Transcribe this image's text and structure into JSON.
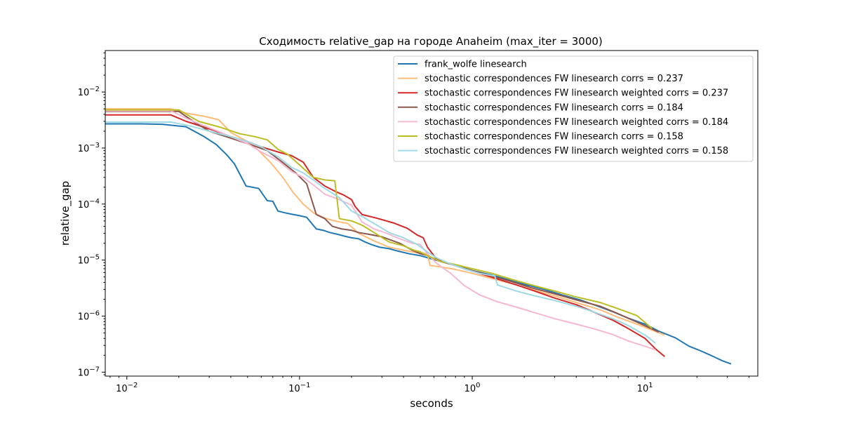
{
  "chart_data": {
    "type": "line",
    "title": "Сходимость relative_gap на городе Anaheim  (max_iter = 3000)",
    "xlabel": "seconds",
    "ylabel": "relative_gap",
    "xscale": "log",
    "yscale": "log",
    "xlim": [
      0.0075,
      45
    ],
    "ylim": [
      8.5e-08,
      0.055
    ],
    "legend_position": "top-right",
    "grid": false,
    "x_ticks": [
      {
        "value": 0.01,
        "base": "10",
        "exp": "−2"
      },
      {
        "value": 0.1,
        "base": "10",
        "exp": "−1"
      },
      {
        "value": 1,
        "base": "10",
        "exp": "0"
      },
      {
        "value": 10,
        "base": "10",
        "exp": "1"
      }
    ],
    "y_ticks": [
      {
        "value": 1e-07,
        "base": "10",
        "exp": "−7"
      },
      {
        "value": 1e-06,
        "base": "10",
        "exp": "−6"
      },
      {
        "value": 1e-05,
        "base": "10",
        "exp": "−5"
      },
      {
        "value": 0.0001,
        "base": "10",
        "exp": "−4"
      },
      {
        "value": 0.001,
        "base": "10",
        "exp": "−3"
      },
      {
        "value": 0.01,
        "base": "10",
        "exp": "−2"
      }
    ],
    "series": [
      {
        "name": "frank_wolfe linesearch",
        "color": "#1f77b4",
        "x": [
          0.0075,
          0.012,
          0.016,
          0.022,
          0.028,
          0.033,
          0.038,
          0.042,
          0.049,
          0.058,
          0.065,
          0.07,
          0.075,
          0.082,
          0.09,
          0.1,
          0.11,
          0.125,
          0.137,
          0.15,
          0.165,
          0.18,
          0.2,
          0.22,
          0.24,
          0.26,
          0.29,
          0.33,
          0.37,
          0.43,
          0.5,
          0.58,
          0.7,
          0.85,
          1.0,
          1.3,
          1.6,
          2.0,
          2.6,
          3.3,
          4.2,
          5.2,
          6.5,
          8.0,
          10.0,
          12.0,
          15.0,
          18.0,
          21.0,
          24.0,
          28.0,
          31.5
        ],
        "y": [
          0.0027,
          0.0027,
          0.00265,
          0.0024,
          0.0016,
          0.00115,
          0.00075,
          0.00052,
          0.00021,
          0.00019,
          0.000115,
          0.000112,
          7.5e-05,
          7e-05,
          6.6e-05,
          6.2e-05,
          5.8e-05,
          3.6e-05,
          3.4e-05,
          3.1e-05,
          2.9e-05,
          2.7e-05,
          2.5e-05,
          2.4e-05,
          2.1e-05,
          1.9e-05,
          1.7e-05,
          1.6e-05,
          1.45e-05,
          1.3e-05,
          1.2e-05,
          1.05e-05,
          9e-06,
          7.6e-06,
          6.5e-06,
          5.4e-06,
          4.5e-06,
          3.7e-06,
          3e-06,
          2.4e-06,
          1.95e-06,
          1.55e-06,
          1.2e-06,
          9.2e-07,
          7.2e-07,
          5.4e-07,
          4.1e-07,
          2.9e-07,
          2.4e-07,
          2e-07,
          1.6e-07,
          1.4e-07
        ]
      },
      {
        "name": "stochastic correspondences FW linesearch corrs = 0.237",
        "color": "#ffbb78",
        "x": [
          0.0075,
          0.018,
          0.022,
          0.028,
          0.034,
          0.04,
          0.05,
          0.058,
          0.068,
          0.08,
          0.092,
          0.105,
          0.12,
          0.14,
          0.16,
          0.19,
          0.22,
          0.27,
          0.33,
          0.4,
          0.48,
          0.55,
          0.57,
          0.65,
          0.8,
          1.0,
          1.3,
          1.7,
          2.2,
          3.0,
          4.0,
          5.5,
          7.0,
          9.0,
          11.0,
          13.0
        ],
        "y": [
          0.005,
          0.005,
          0.0042,
          0.0037,
          0.0032,
          0.0019,
          0.0013,
          0.0009,
          0.00055,
          0.0003,
          0.00016,
          0.0001,
          7e-05,
          5.6e-05,
          5e-05,
          4.5e-05,
          3e-05,
          2.2e-05,
          1.7e-05,
          1.5e-05,
          1.35e-05,
          1.3e-05,
          8e-06,
          7.6e-06,
          6.8e-06,
          5.8e-06,
          4.7e-06,
          3.8e-06,
          3e-06,
          2.3e-06,
          1.75e-06,
          1.3e-06,
          9.5e-07,
          7.2e-07,
          5.6e-07,
          4.6e-07
        ]
      },
      {
        "name": "stochastic correspondences FW linesearch weighted corrs = 0.237",
        "color": "#d62728",
        "x": [
          0.0075,
          0.018,
          0.022,
          0.03,
          0.04,
          0.05,
          0.06,
          0.075,
          0.09,
          0.105,
          0.12,
          0.14,
          0.16,
          0.18,
          0.2,
          0.21,
          0.23,
          0.28,
          0.35,
          0.42,
          0.48,
          0.52,
          0.55,
          0.62,
          0.75,
          0.9,
          1.1,
          1.4,
          1.8,
          2.3,
          3.0,
          4.0,
          5.0,
          6.5,
          8.0,
          10.0,
          11.5,
          13.0
        ],
        "y": [
          0.0039,
          0.0039,
          0.003,
          0.0022,
          0.0016,
          0.0013,
          0.00105,
          0.00085,
          0.00073,
          0.00056,
          0.0003,
          0.00021,
          0.00017,
          0.000145,
          0.00012,
          9e-05,
          6.5e-05,
          5.6e-05,
          4.6e-05,
          3.7e-05,
          2.8e-05,
          2.5e-05,
          1.7e-05,
          1.05e-05,
          8.5e-06,
          7e-06,
          5.8e-06,
          4.6e-06,
          3.6e-06,
          2.8e-06,
          2.1e-06,
          1.6e-06,
          1.2e-06,
          8.5e-07,
          6e-07,
          4e-07,
          2.6e-07,
          1.9e-07
        ]
      },
      {
        "name": "stochastic correspondences FW linesearch corrs = 0.184",
        "color": "#8c564b",
        "x": [
          0.0075,
          0.02,
          0.025,
          0.03,
          0.04,
          0.05,
          0.065,
          0.08,
          0.095,
          0.11,
          0.125,
          0.14,
          0.155,
          0.175,
          0.2,
          0.22,
          0.25,
          0.3,
          0.38,
          0.45,
          0.5,
          0.55,
          0.65,
          0.8,
          1.0,
          1.3,
          1.7,
          2.2,
          3.0,
          4.0,
          5.5,
          7.0,
          9.0,
          12.0
        ],
        "y": [
          0.0045,
          0.0045,
          0.0028,
          0.002,
          0.0015,
          0.0012,
          0.0009,
          0.00055,
          0.00036,
          0.00023,
          6.5e-05,
          5.5e-05,
          4e-05,
          3.6e-05,
          3.4e-05,
          3.1e-05,
          2.9e-05,
          2.6e-05,
          2e-05,
          1.5e-05,
          1.3e-05,
          1.2e-05,
          9.5e-06,
          8e-06,
          6.5e-06,
          5.2e-06,
          4.1e-06,
          3.2e-06,
          2.5e-06,
          1.95e-06,
          1.5e-06,
          1.1e-06,
          7.8e-07,
          5.2e-07
        ]
      },
      {
        "name": "stochastic correspondences FW linesearch weighted corrs = 0.184",
        "color": "#f7b6d2",
        "x": [
          0.0075,
          0.018,
          0.023,
          0.03,
          0.04,
          0.05,
          0.06,
          0.075,
          0.09,
          0.105,
          0.12,
          0.14,
          0.17,
          0.2,
          0.23,
          0.27,
          0.32,
          0.38,
          0.45,
          0.5,
          0.53,
          0.57,
          0.62,
          0.75,
          0.9,
          1.1,
          1.4,
          1.8,
          2.3,
          3.0,
          3.8,
          5.0,
          6.5,
          8.0,
          10.0,
          11.5
        ],
        "y": [
          0.0046,
          0.0046,
          0.0032,
          0.0023,
          0.0016,
          0.0012,
          0.00085,
          0.0006,
          0.00038,
          0.0003,
          0.00022,
          0.00015,
          0.00012,
          9.5e-05,
          4.8e-05,
          3.6e-05,
          3e-05,
          2.4e-05,
          2e-05,
          1.9e-05,
          1.5e-05,
          1.15e-05,
          8.8e-06,
          5.8e-06,
          3.5e-06,
          2.4e-06,
          1.8e-06,
          1.45e-06,
          1.15e-06,
          9e-07,
          7.5e-07,
          6e-07,
          4.7e-07,
          3.6e-07,
          2.9e-07,
          2.5e-07
        ]
      },
      {
        "name": "stochastic correspondences FW linesearch corrs = 0.158",
        "color": "#bcbd22",
        "x": [
          0.0075,
          0.02,
          0.026,
          0.034,
          0.045,
          0.055,
          0.065,
          0.075,
          0.085,
          0.1,
          0.12,
          0.14,
          0.16,
          0.17,
          0.2,
          0.23,
          0.27,
          0.33,
          0.4,
          0.46,
          0.5,
          0.55,
          0.65,
          0.8,
          1.0,
          1.3,
          1.7,
          2.2,
          3.0,
          4.0,
          5.5,
          7.0,
          9.0,
          11.0
        ],
        "y": [
          0.0048,
          0.0048,
          0.003,
          0.0024,
          0.0018,
          0.0016,
          0.0014,
          0.00095,
          0.00078,
          0.0005,
          0.0003,
          0.00027,
          0.00026,
          5.5e-05,
          5e-05,
          4.2e-05,
          3.1e-05,
          2.1e-05,
          1.8e-05,
          1.5e-05,
          1.4e-05,
          1.2e-05,
          9.5e-06,
          8.3e-06,
          7e-06,
          5.8e-06,
          4.5e-06,
          3.6e-06,
          2.8e-06,
          2.2e-06,
          1.75e-06,
          1.35e-06,
          1.02e-06,
          6e-07
        ]
      },
      {
        "name": "stochastic correspondences FW linesearch weighted corrs = 0.158",
        "color": "#9edae5",
        "x": [
          0.0075,
          0.018,
          0.023,
          0.03,
          0.04,
          0.05,
          0.06,
          0.075,
          0.09,
          0.105,
          0.12,
          0.14,
          0.17,
          0.2,
          0.23,
          0.27,
          0.33,
          0.4,
          0.48,
          0.55,
          0.62,
          0.75,
          0.9,
          1.1,
          1.35,
          1.4,
          1.8,
          2.3,
          3.0,
          4.0,
          5.0,
          6.5,
          8.0,
          10.0,
          11.5
        ],
        "y": [
          0.0029,
          0.0029,
          0.0025,
          0.002,
          0.0016,
          0.0013,
          0.00105,
          0.0007,
          0.00045,
          0.00036,
          0.00027,
          0.00019,
          0.00013,
          7.5e-05,
          6e-05,
          4.5e-05,
          3.1e-05,
          2.5e-05,
          1.9e-05,
          1.4e-05,
          1.1e-05,
          8.5e-06,
          7e-06,
          5.8e-06,
          5.2e-06,
          3.6e-06,
          2.8e-06,
          2.3e-06,
          1.9e-06,
          1.5e-06,
          1.2e-06,
          9e-07,
          6.8e-07,
          4.6e-07,
          3.3e-07
        ]
      }
    ]
  }
}
